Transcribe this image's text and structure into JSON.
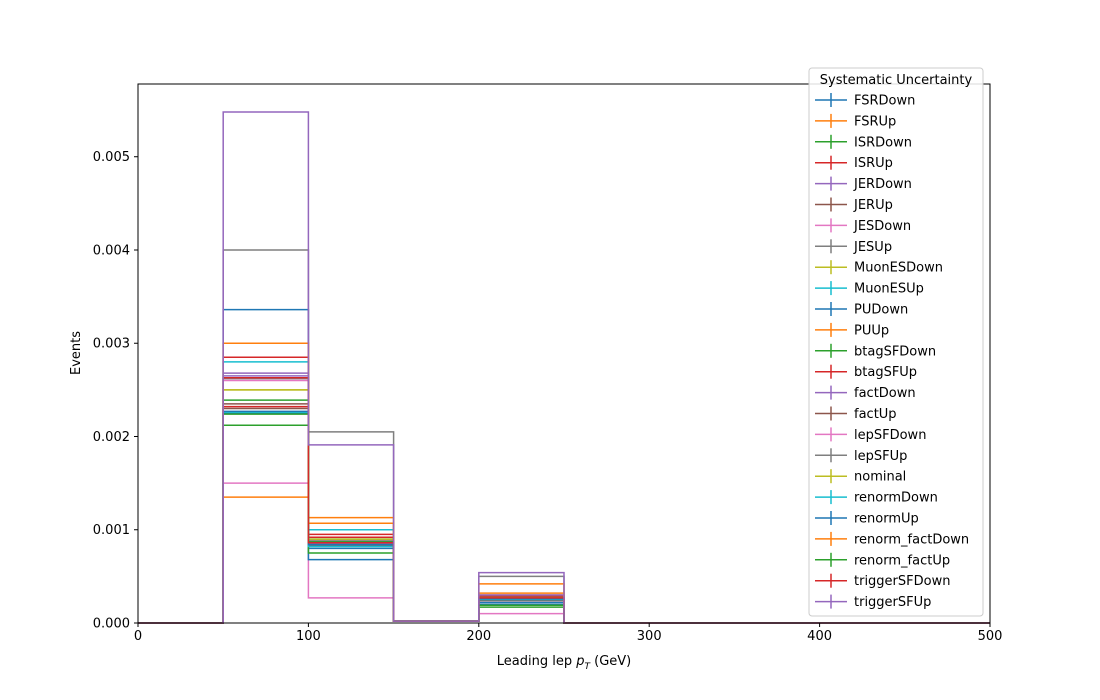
{
  "chart_data": {
    "type": "step",
    "xlabel": "Leading lep",
    "xlabel_sub": "T",
    "xlabel_unit": "(GeV)",
    "ylabel": "Events",
    "xlim": [
      0,
      500
    ],
    "ylim": [
      0,
      0.00578
    ],
    "bin_edges": [
      0,
      50,
      100,
      150,
      200,
      250,
      300,
      350,
      400,
      450,
      500
    ],
    "x_ticks": [
      0,
      100,
      200,
      300,
      400,
      500
    ],
    "x_tick_labels": [
      "0",
      "100",
      "200",
      "300",
      "400",
      "500"
    ],
    "y_ticks": [
      0,
      0.001,
      0.002,
      0.003,
      0.004,
      0.005
    ],
    "y_tick_labels": [
      "0.000",
      "0.001",
      "0.002",
      "0.003",
      "0.004",
      "0.005"
    ],
    "grid": false,
    "legend_title": "Systematic Uncertainty",
    "legend_placement": "top-right",
    "series": [
      {
        "name": "FSRDown",
        "color": "#1f77b4",
        "values": [
          0,
          0.00225,
          0.0008,
          2e-05,
          0.00022,
          0,
          0,
          0,
          0,
          0
        ]
      },
      {
        "name": "FSRUp",
        "color": "#ff7f0e",
        "values": [
          0,
          0.00135,
          0.00107,
          2e-05,
          0.0003,
          0,
          0,
          0,
          0,
          0
        ]
      },
      {
        "name": "ISRDown",
        "color": "#2ca02c",
        "values": [
          0,
          0.00212,
          0.0009,
          2e-05,
          0.00025,
          0,
          0,
          0,
          0,
          0
        ]
      },
      {
        "name": "ISRUp",
        "color": "#d62728",
        "values": [
          0,
          0.00285,
          0.00095,
          2e-05,
          0.00028,
          0,
          0,
          0,
          0,
          0
        ]
      },
      {
        "name": "JERDown",
        "color": "#9467bd",
        "values": [
          0,
          0.00265,
          0.00085,
          2e-05,
          0.00027,
          0,
          0,
          0,
          0,
          0
        ]
      },
      {
        "name": "JERUp",
        "color": "#8c564b",
        "values": [
          0,
          0.00235,
          0.00088,
          2e-05,
          0.00026,
          0,
          0,
          0,
          0,
          0
        ]
      },
      {
        "name": "JESDown",
        "color": "#e377c2",
        "values": [
          0,
          0.0015,
          0.00027,
          2e-05,
          0.0001,
          0,
          0,
          0,
          0,
          0
        ]
      },
      {
        "name": "JESUp",
        "color": "#7f7f7f",
        "values": [
          0,
          0.004,
          0.00205,
          2e-05,
          0.0005,
          0,
          0,
          0,
          0,
          0
        ]
      },
      {
        "name": "MuonESDown",
        "color": "#bcbd22",
        "values": [
          0,
          0.0025,
          0.0009,
          2e-05,
          0.00028,
          0,
          0,
          0,
          0,
          0
        ]
      },
      {
        "name": "MuonESUp",
        "color": "#17becf",
        "values": [
          0,
          0.0028,
          0.001,
          2e-05,
          0.00029,
          0,
          0,
          0,
          0,
          0
        ]
      },
      {
        "name": "PUDown",
        "color": "#1f77b4",
        "values": [
          0,
          0.00336,
          0.00068,
          2e-05,
          0.0002,
          0,
          0,
          0,
          0,
          0
        ]
      },
      {
        "name": "PUUp",
        "color": "#ff7f0e",
        "values": [
          0,
          0.003,
          0.00113,
          2e-05,
          0.00042,
          0,
          0,
          0,
          0,
          0
        ]
      },
      {
        "name": "btagSFDown",
        "color": "#2ca02c",
        "values": [
          0,
          0.00239,
          0.00075,
          2e-05,
          0.00017,
          0,
          0,
          0,
          0,
          0
        ]
      },
      {
        "name": "btagSFUp",
        "color": "#d62728",
        "values": [
          0,
          0.00232,
          0.00092,
          2e-05,
          0.00029,
          0,
          0,
          0,
          0,
          0
        ]
      },
      {
        "name": "factDown",
        "color": "#9467bd",
        "values": [
          0,
          0.00268,
          0.00085,
          2e-05,
          0.0003,
          0,
          0,
          0,
          0,
          0
        ]
      },
      {
        "name": "factUp",
        "color": "#8c564b",
        "values": [
          0,
          0.0023,
          0.00083,
          2e-05,
          0.00024,
          0,
          0,
          0,
          0,
          0
        ]
      },
      {
        "name": "lepSFDown",
        "color": "#e377c2",
        "values": [
          0,
          0.0026,
          0.00087,
          2e-05,
          0.00026,
          0,
          0,
          0,
          0,
          0
        ]
      },
      {
        "name": "lepSFUp",
        "color": "#7f7f7f",
        "values": [
          0,
          0.00262,
          0.00088,
          2e-05,
          0.00027,
          0,
          0,
          0,
          0,
          0
        ]
      },
      {
        "name": "nominal",
        "color": "#bcbd22",
        "values": [
          0,
          0.0025,
          0.00086,
          2e-05,
          0.00027,
          0,
          0,
          0,
          0,
          0
        ]
      },
      {
        "name": "renormDown",
        "color": "#17becf",
        "values": [
          0,
          0.00226,
          0.00082,
          2e-05,
          0.00025,
          0,
          0,
          0,
          0,
          0
        ]
      },
      {
        "name": "renormUp",
        "color": "#1f77b4",
        "values": [
          0,
          0.00227,
          0.00084,
          2e-05,
          0.00026,
          0,
          0,
          0,
          0,
          0
        ]
      },
      {
        "name": "renorm_factDown",
        "color": "#ff7f0e",
        "values": [
          0,
          0.003,
          0.00107,
          2e-05,
          0.00032,
          0,
          0,
          0,
          0,
          0
        ]
      },
      {
        "name": "renorm_factUp",
        "color": "#2ca02c",
        "values": [
          0,
          0.00224,
          0.00087,
          2e-05,
          0.00019,
          0,
          0,
          0,
          0,
          0
        ]
      },
      {
        "name": "triggerSFDown",
        "color": "#d62728",
        "values": [
          0,
          0.00263,
          0.00086,
          2e-05,
          0.00027,
          0,
          0,
          0,
          0,
          0
        ]
      },
      {
        "name": "triggerSFUp",
        "color": "#9467bd",
        "values": [
          0,
          0.00548,
          0.00191,
          2e-05,
          0.00054,
          0,
          0,
          0,
          0,
          0
        ]
      }
    ]
  }
}
